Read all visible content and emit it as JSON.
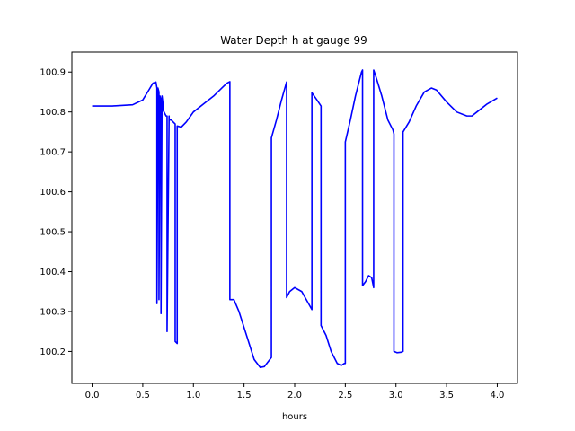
{
  "chart_data": {
    "type": "line",
    "title": "Water Depth h at gauge 99",
    "xlabel": "hours",
    "ylabel": "",
    "xlim": [
      -0.2,
      4.2
    ],
    "ylim": [
      100.12,
      100.95
    ],
    "xticks": [
      0.0,
      0.5,
      1.0,
      1.5,
      2.0,
      2.5,
      3.0,
      3.5,
      4.0
    ],
    "xtick_labels": [
      "0.0",
      "0.5",
      "1.0",
      "1.5",
      "2.0",
      "2.5",
      "3.0",
      "3.5",
      "4.0"
    ],
    "yticks": [
      100.2,
      100.3,
      100.4,
      100.5,
      100.6,
      100.7,
      100.8,
      100.9
    ],
    "ytick_labels": [
      "100.2",
      "100.3",
      "100.4",
      "100.5",
      "100.6",
      "100.7",
      "100.8",
      "100.9"
    ],
    "grid": false,
    "series": [
      {
        "color": "#0000ff",
        "x": [
          0.0,
          0.2,
          0.4,
          0.5,
          0.56,
          0.6,
          0.63,
          0.64,
          0.64,
          0.65,
          0.66,
          0.66,
          0.67,
          0.68,
          0.68,
          0.69,
          0.7,
          0.7,
          0.73,
          0.74,
          0.74,
          0.76,
          0.76,
          0.78,
          0.82,
          0.82,
          0.84,
          0.84,
          0.88,
          0.93,
          1.0,
          1.1,
          1.2,
          1.28,
          1.33,
          1.36,
          1.36,
          1.4,
          1.45,
          1.5,
          1.6,
          1.66,
          1.7,
          1.74,
          1.77,
          1.77,
          1.82,
          1.87,
          1.92,
          1.92,
          1.95,
          2.0,
          2.07,
          2.17,
          2.17,
          2.22,
          2.26,
          2.26,
          2.31,
          2.36,
          2.42,
          2.46,
          2.49,
          2.5,
          2.5,
          2.55,
          2.6,
          2.66,
          2.67,
          2.67,
          2.7,
          2.73,
          2.76,
          2.78,
          2.78,
          2.8,
          2.86,
          2.92,
          2.97,
          2.98,
          2.98,
          3.01,
          3.05,
          3.07,
          3.07,
          3.13,
          3.2,
          3.28,
          3.35,
          3.4,
          3.5,
          3.6,
          3.7,
          3.75,
          3.8,
          3.9,
          4.0
        ],
        "y": [
          100.815,
          100.815,
          100.818,
          100.83,
          100.855,
          100.872,
          100.875,
          100.86,
          100.32,
          100.86,
          100.85,
          100.33,
          100.84,
          100.83,
          100.295,
          100.84,
          100.82,
          100.805,
          100.79,
          100.79,
          100.25,
          100.79,
          100.78,
          100.78,
          100.77,
          100.225,
          100.22,
          100.765,
          100.762,
          100.775,
          100.8,
          100.82,
          100.84,
          100.86,
          100.872,
          100.876,
          100.33,
          100.33,
          100.3,
          100.26,
          100.18,
          100.16,
          100.162,
          100.175,
          100.185,
          100.735,
          100.78,
          100.83,
          100.875,
          100.335,
          100.35,
          100.36,
          100.35,
          100.305,
          100.848,
          100.83,
          100.815,
          100.265,
          100.24,
          100.2,
          100.17,
          100.165,
          100.17,
          100.17,
          100.725,
          100.78,
          100.84,
          100.9,
          100.905,
          100.365,
          100.375,
          100.39,
          100.385,
          100.36,
          100.905,
          100.89,
          100.84,
          100.78,
          100.755,
          100.745,
          100.2,
          100.197,
          100.198,
          100.2,
          100.75,
          100.775,
          100.815,
          100.85,
          100.86,
          100.855,
          100.825,
          100.8,
          100.79,
          100.79,
          100.8,
          100.82,
          100.835
        ]
      }
    ]
  }
}
